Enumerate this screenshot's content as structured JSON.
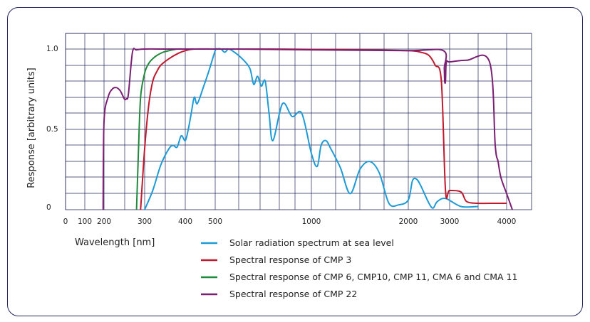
{
  "chart_data": {
    "type": "line",
    "xlabel": "Wavelength [nm]",
    "ylabel": "Response [arbitrary units]",
    "ylim": [
      0,
      1.0
    ],
    "grid": true,
    "legend_placement": "bottom",
    "x_ticks": [
      0,
      100,
      200,
      300,
      400,
      500,
      1000,
      2000,
      3000,
      4000
    ],
    "x_tick_labels": [
      "0",
      "100",
      "200",
      "300",
      "400",
      "500",
      "1000",
      "2000",
      "3000",
      "4000"
    ],
    "y_ticks": [
      0,
      0.5,
      1.0
    ],
    "y_tick_labels": [
      "0",
      "0.5",
      "1.0"
    ],
    "series": [
      {
        "name": "Solar radiation spectrum at sea level",
        "color": "#1d9bd6",
        "x": [
          300,
          320,
          340,
          360,
          370,
          380,
          390,
          400,
          410,
          420,
          430,
          440,
          460,
          480,
          500,
          510,
          530,
          550,
          570,
          600,
          640,
          680,
          700,
          720,
          740,
          760,
          780,
          800,
          850,
          900,
          950,
          1000,
          1060,
          1100,
          1150,
          1200,
          1300,
          1400,
          1500,
          1600,
          1700,
          1800,
          1900,
          2000,
          2100,
          2200,
          2300,
          2500,
          2600,
          2700,
          2900,
          3200,
          3500
        ],
        "y": [
          0,
          0.12,
          0.28,
          0.38,
          0.4,
          0.39,
          0.46,
          0.43,
          0.5,
          0.6,
          0.7,
          0.66,
          0.76,
          0.87,
          0.99,
          1.0,
          1.0,
          0.98,
          1.0,
          0.98,
          0.94,
          0.88,
          0.78,
          0.83,
          0.77,
          0.8,
          0.6,
          0.43,
          0.66,
          0.58,
          0.6,
          0.35,
          0.27,
          0.4,
          0.43,
          0.38,
          0.26,
          0.1,
          0.25,
          0.3,
          0.23,
          0.04,
          0.03,
          0.06,
          0.18,
          0.19,
          0.15,
          0.04,
          0.01,
          0.05,
          0.07,
          0.02,
          0.02
        ]
      },
      {
        "name": "Spectral response of CMP 3",
        "color": "#c0182c",
        "x": [
          290,
          300,
          310,
          320,
          330,
          340,
          360,
          380,
          400,
          430,
          500,
          600,
          800,
          1000,
          1500,
          2000,
          2300,
          2500,
          2650,
          2800,
          2900,
          3000,
          3200,
          3300,
          3500,
          3700,
          4000
        ],
        "y": [
          0,
          0.38,
          0.65,
          0.8,
          0.86,
          0.9,
          0.94,
          0.97,
          0.99,
          1.0,
          1.0,
          1.0,
          1.0,
          0.998,
          0.995,
          0.99,
          0.98,
          0.96,
          0.9,
          0.8,
          0.12,
          0.12,
          0.11,
          0.05,
          0.04,
          0.04,
          0.04
        ]
      },
      {
        "name": "Spectral response of CMP 6, CMP10, CMP 11, CMA 6 and CMA 11",
        "color": "#1f8a3b",
        "x": [
          280,
          285,
          290,
          300,
          310,
          320,
          330,
          345,
          360,
          380,
          400,
          500,
          600
        ],
        "y": [
          0,
          0.38,
          0.7,
          0.85,
          0.91,
          0.94,
          0.96,
          0.98,
          0.99,
          1.0,
          1.0,
          1.0,
          1.0
        ]
      },
      {
        "name": "Spectral response of CMP 22",
        "color": "#7b1f74",
        "x": [
          195,
          200,
          210,
          220,
          230,
          240,
          250,
          255,
          260,
          270,
          280,
          300,
          350,
          400,
          600,
          1000,
          2000,
          2850,
          2870,
          2880,
          2900,
          2920,
          3000,
          3300,
          3700,
          3800,
          3850,
          3900,
          4000,
          4100
        ],
        "y": [
          0,
          0.55,
          0.7,
          0.75,
          0.76,
          0.74,
          0.69,
          0.69,
          0.72,
          0.98,
          0.995,
          1.0,
          1.0,
          1.0,
          1.0,
          0.995,
          0.99,
          0.99,
          0.88,
          0.8,
          0.8,
          0.92,
          0.92,
          0.93,
          0.92,
          0.4,
          0.3,
          0.2,
          0.1,
          0.0
        ]
      }
    ]
  }
}
